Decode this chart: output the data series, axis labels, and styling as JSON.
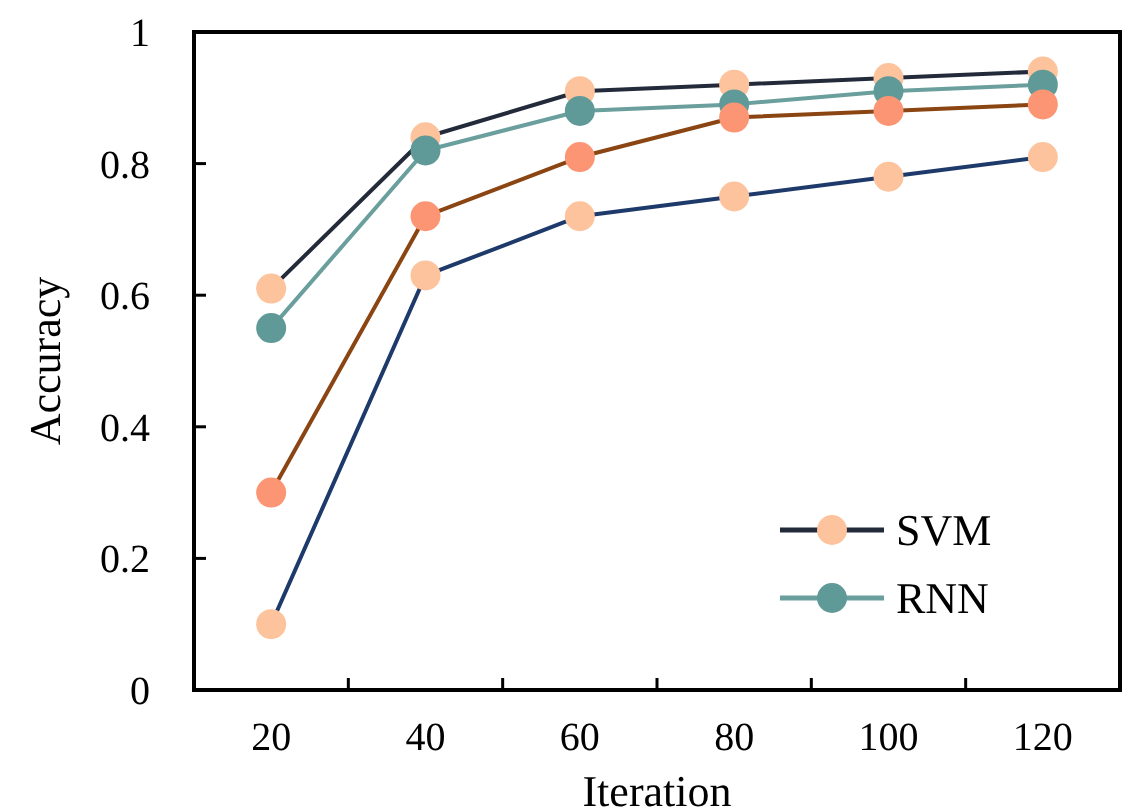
{
  "chart_data": {
    "type": "line",
    "xlabel": "Iteration",
    "ylabel": "Accuracy",
    "categories": [
      "20",
      "40",
      "60",
      "80",
      "100",
      "120"
    ],
    "series": [
      {
        "name": "SVM",
        "color": "#232b3b",
        "colors": [
          "#fdc39c",
          "#fdc39c",
          "#fdc39c",
          "#fdc39c",
          "#fdc39c",
          "#fdc39c"
        ],
        "values": [
          0.61,
          0.84,
          0.91,
          0.92,
          0.93,
          0.94
        ]
      },
      {
        "name": "RNN",
        "color": "#6a9f9d",
        "colors": [
          "#609a98",
          "#609a98",
          "#609a98",
          "#609a98",
          "#609a98",
          "#609a98"
        ],
        "values": [
          0.55,
          0.82,
          0.88,
          0.89,
          0.91,
          0.92
        ]
      },
      {
        "color": "#8b4513",
        "colors": [
          "#fc9574",
          "#fc9574",
          "#fc9574",
          "#fc9574",
          "#fc9574",
          "#fc9574"
        ],
        "values": [
          0.3,
          0.72,
          0.81,
          0.87,
          0.88,
          0.89
        ]
      },
      {
        "color": "#1e3a6b",
        "colors": [
          "#fdc39c",
          "#fdc39c",
          "#fdc39c",
          "#fdc39c",
          "#fdc39c",
          "#fdc39c"
        ],
        "values": [
          0.1,
          0.63,
          0.72,
          0.75,
          0.78,
          0.81
        ]
      }
    ],
    "ylim": [
      0,
      1
    ],
    "yticks": [
      0,
      0.2,
      0.4,
      0.6,
      0.8,
      1
    ],
    "grid": false,
    "legend": "bottom right",
    "marker": "circle",
    "line_style": "solid"
  }
}
